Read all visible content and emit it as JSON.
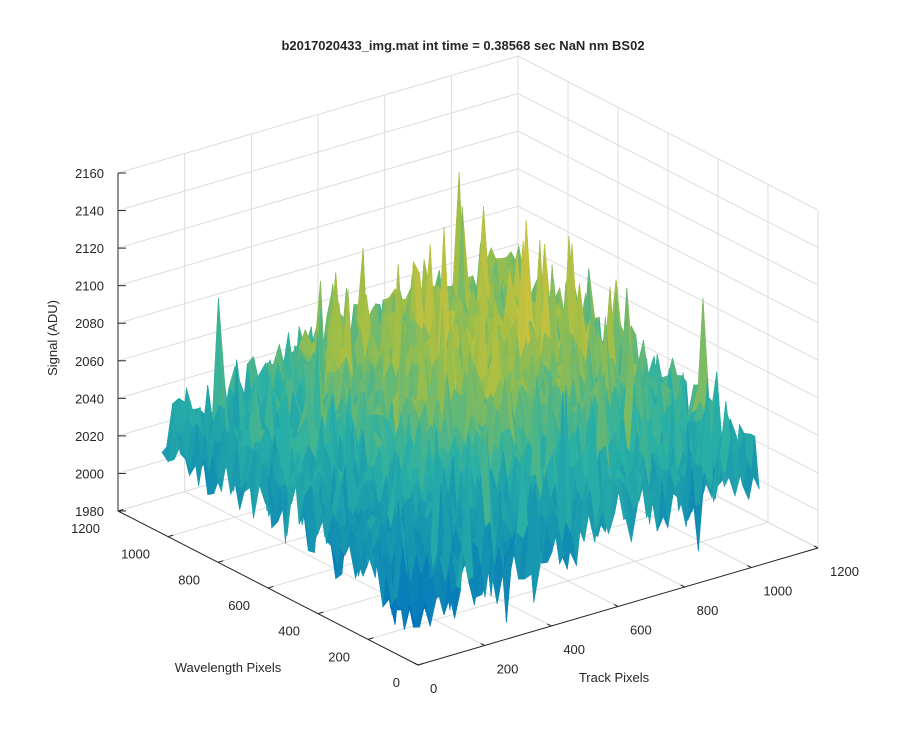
{
  "chart_data": {
    "type": "surface",
    "title": "b2017020433_img.mat int time = 0.38568 sec  NaN nm BS02",
    "xlabel": "Track Pixels",
    "ylabel": "Wavelength Pixels",
    "zlabel": "Signal (ADU)",
    "xlim": [
      0,
      1200
    ],
    "ylim": [
      0,
      1200
    ],
    "zlim": [
      1980,
      2160
    ],
    "x_ticks": [
      "0",
      "200",
      "400",
      "600",
      "800",
      "1000",
      "1200"
    ],
    "y_ticks": [
      "0",
      "200",
      "400",
      "600",
      "800",
      "1000",
      "1200"
    ],
    "z_ticks": [
      "1980",
      "2000",
      "2020",
      "2040",
      "2060",
      "2080",
      "2100",
      "2120",
      "2140",
      "2160"
    ],
    "grid": true,
    "colormap": "parula",
    "data_extent": {
      "x": [
        0,
        1024
      ],
      "y": [
        0,
        1024
      ]
    },
    "surface_levels": {
      "corner_near": 2010,
      "corner_far": 2060,
      "corner_left": 2030,
      "corner_right": 2030,
      "center": 2070,
      "peak_max": 2150,
      "trough_min": 1985
    },
    "colors": {
      "low": "#0072bd",
      "mid": "#2ab1a5",
      "high": "#e2c43a",
      "grid": "#dcdcdc",
      "axis": "#262626"
    }
  }
}
